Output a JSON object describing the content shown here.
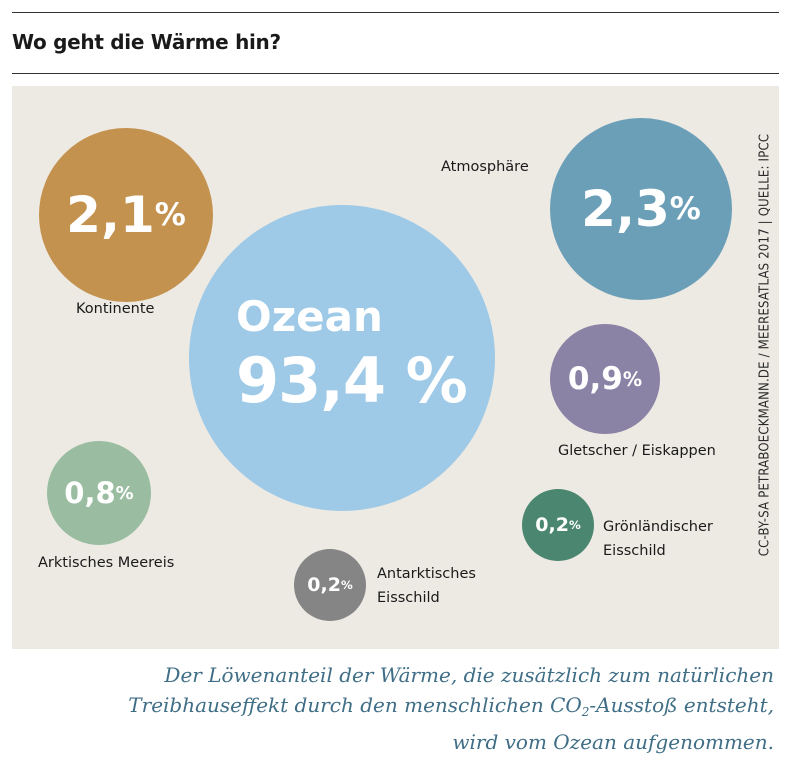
{
  "header": {
    "title": "Wo geht die Wärme hin?"
  },
  "chart_data": {
    "type": "bubble",
    "unit": "%",
    "items": [
      {
        "name": "Ozean",
        "value": 93.4,
        "display": "93,4",
        "color": "#9ecae8"
      },
      {
        "name": "Atmosphäre",
        "value": 2.3,
        "display": "2,3",
        "color": "#6b9fb8"
      },
      {
        "name": "Kontinente",
        "value": 2.1,
        "display": "2,1",
        "color": "#c4924f"
      },
      {
        "name": "Gletscher / Eiskappen",
        "value": 0.9,
        "display": "0,9",
        "color": "#8a83a6"
      },
      {
        "name": "Arktisches Meereis",
        "value": 0.8,
        "display": "0,8",
        "color": "#9abda2"
      },
      {
        "name": "Grönländischer Eisschild",
        "value": 0.2,
        "display": "0,2",
        "color": "#4b8770"
      },
      {
        "name": "Antarktisches Eisschild",
        "value": 0.2,
        "display": "0,2",
        "color": "#858585"
      }
    ],
    "labels": {
      "ocean_word": "Ozean",
      "atmosphere": "Atmosphäre",
      "continents": "Kontinente",
      "glaciers": "Gletscher / Eiskappen",
      "arctic": "Arktisches Meereis",
      "greenland_line1": "Grönländischer",
      "greenland_line2": "Eisschild",
      "antarctic_line1": "Antarktisches",
      "antarctic_line2": "Eisschild"
    },
    "percent_sign": "%"
  },
  "credit": "CC-BY-SA PETRABOECKMANN.DE / MEERESATLAS 2017 | QUELLE: IPCC",
  "caption": {
    "line1": "Der Löwenanteil der Wärme, die zusätzlich zum natürlichen",
    "line2_before": "Treibhauseffekt durch den menschlichen CO",
    "line2_sub": "2",
    "line2_after": "-Ausstoß entsteht,",
    "line3": "wird vom Ozean aufgenommen."
  }
}
